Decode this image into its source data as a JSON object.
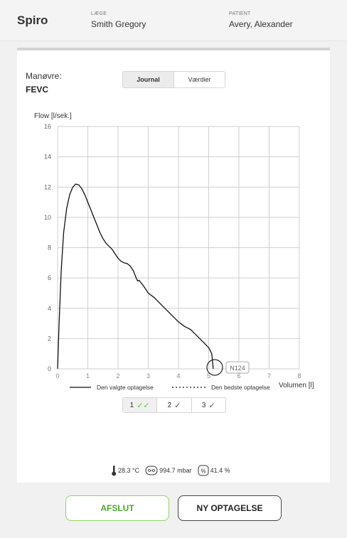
{
  "header": {
    "app_title": "Spiro",
    "doctor_label": "LÆGE",
    "doctor_name": "Smith Gregory",
    "patient_label": "PATIENT",
    "patient_name": "Avery, Alexander"
  },
  "maneuver": {
    "label": "Manøvre:",
    "value": "FEVC"
  },
  "tabs": [
    {
      "label": "Journal",
      "active": true
    },
    {
      "label": "Værdier",
      "active": false
    }
  ],
  "chart_data": {
    "type": "line",
    "ylabel": "Flow [l/sek.]",
    "xlabel": "Volumen [l]",
    "xlim": [
      0,
      8
    ],
    "ylim": [
      0,
      16
    ],
    "x_ticks": [
      "0",
      "1",
      "2",
      "3",
      "4",
      "5",
      "6",
      "7",
      "8"
    ],
    "y_ticks": [
      "0",
      "2",
      "4",
      "6",
      "8",
      "10",
      "12",
      "14",
      "16"
    ],
    "grid": true,
    "legend": [
      {
        "label": "Den valgte optagelse",
        "style": "solid"
      },
      {
        "label": "Den bedste optagelse",
        "style": "dotted"
      }
    ],
    "legend_position": "bottom",
    "series": [
      {
        "style": "solid",
        "x": [
          0,
          0.05,
          0.12,
          0.2,
          0.3,
          0.4,
          0.5,
          0.6,
          0.7,
          0.8,
          0.9,
          1.0,
          1.1,
          1.2,
          1.3,
          1.4,
          1.5,
          1.6,
          1.7,
          1.8,
          1.9,
          2.0,
          2.1,
          2.2,
          2.3,
          2.4,
          2.5,
          2.6,
          2.65,
          2.7,
          2.75,
          2.8,
          2.9,
          3.0,
          3.2,
          3.4,
          3.6,
          3.8,
          4.0,
          4.2,
          4.4,
          4.6,
          4.8,
          5.0,
          5.1,
          5.15
        ],
        "y": [
          0,
          3,
          6.5,
          9,
          10.6,
          11.5,
          12,
          12.2,
          12.15,
          11.9,
          11.5,
          11,
          10.5,
          10,
          9.5,
          9,
          8.6,
          8.3,
          8.1,
          7.9,
          7.6,
          7.3,
          7.1,
          7.0,
          6.95,
          6.8,
          6.5,
          6.0,
          5.8,
          5.85,
          5.7,
          5.6,
          5.3,
          5.0,
          4.7,
          4.3,
          3.9,
          3.5,
          3.1,
          2.8,
          2.6,
          2.2,
          1.8,
          1.4,
          1.0,
          0
        ]
      }
    ],
    "annotation": {
      "label": "N124",
      "x": 5.2,
      "y": 0
    }
  },
  "trials": [
    {
      "number": "1",
      "check": "double-check",
      "active": true
    },
    {
      "number": "2",
      "check": "check",
      "active": false
    },
    {
      "number": "3",
      "check": "check",
      "active": false
    }
  ],
  "environment": {
    "temperature": "28.3 °C",
    "pressure": "994.7 mbar",
    "humidity": "41.4 %"
  },
  "actions": {
    "finish_label": "AFSLUT",
    "new_label": "NY OPTAGELSE"
  },
  "colors": {
    "accent_green": "#6cc24a",
    "finish_border": "#8fd36a"
  }
}
